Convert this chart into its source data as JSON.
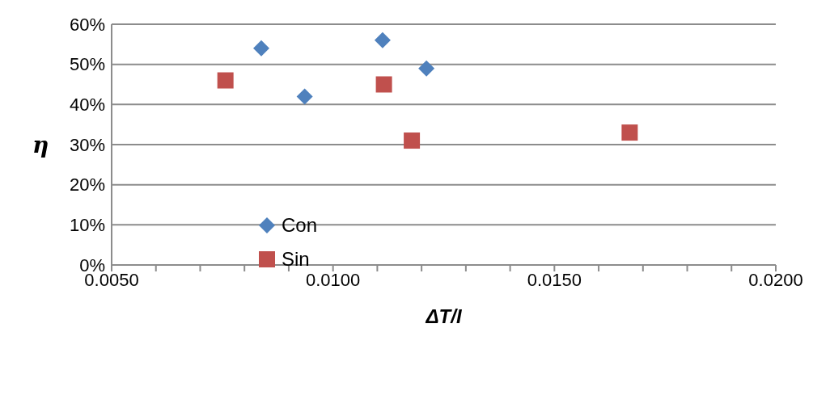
{
  "chart_data": {
    "type": "scatter",
    "xlabel": "ΔT/I",
    "ylabel": "η",
    "series": [
      {
        "name": "Con",
        "color": "#4f81bd",
        "marker": "diamond",
        "x": [
          0.00838,
          0.00936,
          0.01112,
          0.01211
        ],
        "values": [
          0.54,
          0.42,
          0.56,
          0.49
        ]
      },
      {
        "name": "Sin",
        "color": "#c0504d",
        "marker": "square",
        "x": [
          0.00757,
          0.01115,
          0.01178,
          0.0167
        ],
        "values": [
          0.46,
          0.45,
          0.31,
          0.33
        ]
      }
    ],
    "xlim": [
      0.005,
      0.02
    ],
    "xticks": [
      {
        "value": 0.005,
        "label": "0.0050"
      },
      {
        "value": 0.006,
        "label": null
      },
      {
        "value": 0.007,
        "label": null
      },
      {
        "value": 0.008,
        "label": null
      },
      {
        "value": 0.009,
        "label": null
      },
      {
        "value": 0.01,
        "label": "0.0100"
      },
      {
        "value": 0.011,
        "label": null
      },
      {
        "value": 0.012,
        "label": null
      },
      {
        "value": 0.013,
        "label": null
      },
      {
        "value": 0.014,
        "label": null
      },
      {
        "value": 0.015,
        "label": "0.0150"
      },
      {
        "value": 0.016,
        "label": null
      },
      {
        "value": 0.017,
        "label": null
      },
      {
        "value": 0.018,
        "label": null
      },
      {
        "value": 0.019,
        "label": null
      },
      {
        "value": 0.02,
        "label": "0.0200"
      }
    ],
    "ylim": [
      0,
      0.6
    ],
    "yticks": [
      {
        "value": 0,
        "label": "0%"
      },
      {
        "value": 0.1,
        "label": "10%"
      },
      {
        "value": 0.2,
        "label": "20%"
      },
      {
        "value": 0.3,
        "label": "30%"
      },
      {
        "value": 0.4,
        "label": "40%"
      },
      {
        "value": 0.5,
        "label": "50%"
      },
      {
        "value": 0.6,
        "label": "60%"
      }
    ],
    "grid": "y",
    "legend": "left"
  }
}
